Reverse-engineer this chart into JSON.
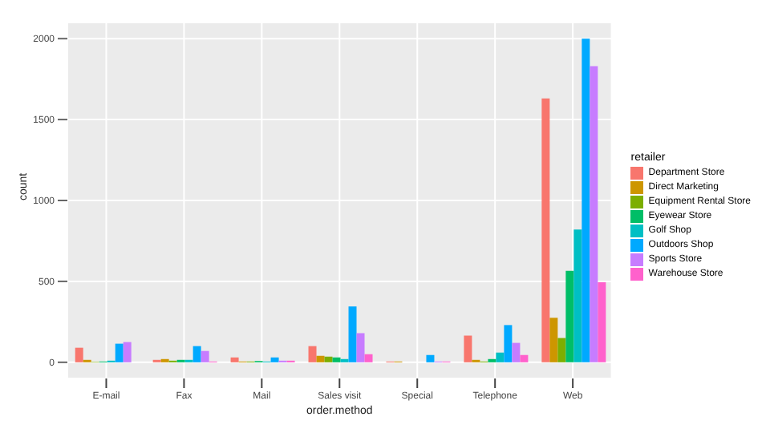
{
  "chart_data": {
    "type": "bar",
    "xlabel": "order.method",
    "ylabel": "count",
    "legend_title": "retailer",
    "categories": [
      "E-mail",
      "Fax",
      "Mail",
      "Sales visit",
      "Special",
      "Telephone",
      "Web"
    ],
    "series": [
      {
        "name": "Department Store",
        "color": "#f8766d",
        "values": [
          90,
          15,
          30,
          100,
          5,
          165,
          1630
        ]
      },
      {
        "name": "Direct Marketing",
        "color": "#cd9600",
        "values": [
          15,
          20,
          5,
          40,
          5,
          15,
          275
        ]
      },
      {
        "name": "Equipment Rental Store",
        "color": "#7cae00",
        "values": [
          3,
          10,
          5,
          35,
          0,
          5,
          150
        ]
      },
      {
        "name": "Eyewear Store",
        "color": "#00be67",
        "values": [
          5,
          15,
          8,
          30,
          0,
          20,
          565
        ]
      },
      {
        "name": "Golf Shop",
        "color": "#00bfc4",
        "values": [
          10,
          15,
          5,
          20,
          0,
          60,
          820
        ]
      },
      {
        "name": "Outdoors Shop",
        "color": "#00a9ff",
        "values": [
          115,
          100,
          30,
          345,
          45,
          230,
          2000
        ]
      },
      {
        "name": "Sports Store",
        "color": "#c77cff",
        "values": [
          125,
          70,
          10,
          180,
          5,
          120,
          1830
        ]
      },
      {
        "name": "Warehouse Store",
        "color": "#ff61cc",
        "values": [
          0,
          5,
          10,
          50,
          5,
          45,
          495
        ]
      }
    ],
    "ylim": [
      -100,
      2100
    ],
    "yticks": [
      0,
      500,
      1000,
      1500,
      2000
    ],
    "grid": true,
    "legend": "right"
  }
}
